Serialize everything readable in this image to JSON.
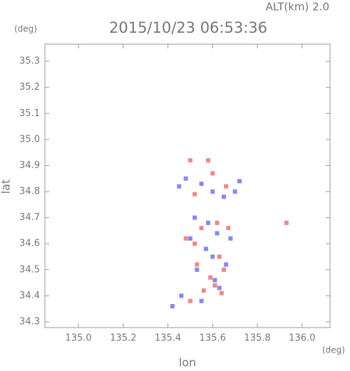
{
  "chart_data": {
    "type": "scatter",
    "title": "2015/10/23 06:53:36",
    "subtitle": "ALT(km) 2.0",
    "x_label": "lon",
    "y_label": "lat",
    "x_unit": "(deg)",
    "y_unit": "(deg)",
    "xlim": [
      134.85,
      136.125
    ],
    "ylim": [
      34.278,
      35.366
    ],
    "xticks": [
      {
        "value": 135,
        "label": "135.0"
      },
      135.2,
      135.4,
      135.6,
      135.8,
      {
        "value": 136,
        "label": "136.0"
      }
    ],
    "yticks": [
      34.3,
      34.4,
      34.5,
      34.6,
      34.7,
      34.8,
      34.9,
      {
        "value": 35,
        "label": "35.0"
      },
      35.1,
      35.2,
      35.3
    ],
    "series": [
      {
        "color": "#f08888",
        "x": [
          135.5,
          135.58,
          135.6,
          135.62,
          135.55,
          135.48,
          135.67,
          135.52,
          135.57,
          135.63,
          135.65,
          135.53,
          135.59,
          135.61,
          135.56,
          135.5,
          135.64,
          135.93,
          135.52,
          135.66
        ],
        "y": [
          34.92,
          34.92,
          34.87,
          34.68,
          34.66,
          34.62,
          34.66,
          34.6,
          34.58,
          34.55,
          34.5,
          34.52,
          34.47,
          34.44,
          34.42,
          34.38,
          34.41,
          34.68,
          34.79,
          34.82
        ]
      },
      {
        "color": "#8888f0",
        "x": [
          135.45,
          135.48,
          135.55,
          135.6,
          135.65,
          135.7,
          135.52,
          135.58,
          135.62,
          135.68,
          135.5,
          135.57,
          135.6,
          135.66,
          135.53,
          135.61,
          135.46,
          135.42,
          135.55,
          135.63,
          135.72
        ],
        "y": [
          34.82,
          34.85,
          34.83,
          34.8,
          34.78,
          34.8,
          34.7,
          34.68,
          34.64,
          34.62,
          34.62,
          34.58,
          34.55,
          34.52,
          34.5,
          34.46,
          34.4,
          34.36,
          34.38,
          34.43,
          34.84
        ]
      }
    ]
  }
}
